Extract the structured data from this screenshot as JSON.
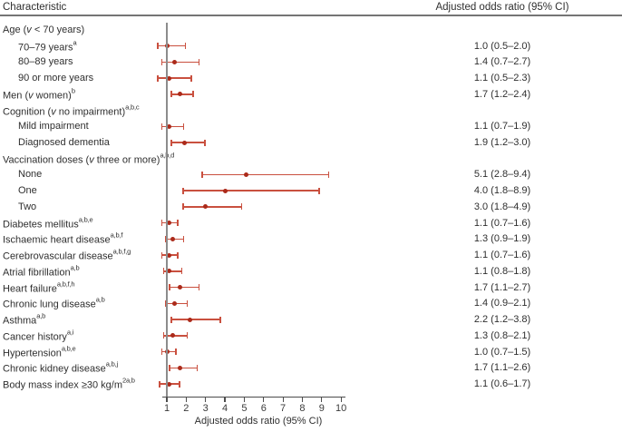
{
  "header": {
    "left": "Characteristic",
    "right": "Adjusted odds ratio (95% CI)"
  },
  "colors": {
    "ci_line": "#c9503f",
    "point": "#ab2a1a",
    "reference_line": "#8c8c8c",
    "header_rule": "#757575",
    "axis": "#4d4d4d",
    "text": "#2f2f2f"
  },
  "chart_data": {
    "type": "scatter",
    "subtype": "forest-plot",
    "title": "",
    "x_axis": {
      "label": "Adjusted odds ratio (95% CI)",
      "ticks": [
        1,
        2,
        3,
        4,
        5,
        6,
        7,
        8,
        9,
        10
      ],
      "min": 1,
      "max": 10,
      "scale": "linear",
      "reference_line_x": 1
    },
    "rows": [
      {
        "label": "Age (v < 70 years)",
        "sup": "",
        "indent": 0,
        "or": null,
        "ci_low": null,
        "ci_high": null,
        "text": ""
      },
      {
        "label": "70–79 years",
        "sup": "a",
        "indent": 1,
        "or": 1.0,
        "ci_low": 0.5,
        "ci_high": 2.0,
        "text": "1.0 (0.5–2.0)"
      },
      {
        "label": "80–89 years",
        "sup": "",
        "indent": 1,
        "or": 1.4,
        "ci_low": 0.7,
        "ci_high": 2.7,
        "text": "1.4 (0.7–2.7)"
      },
      {
        "label": "90 or more years",
        "sup": "",
        "indent": 1,
        "or": 1.1,
        "ci_low": 0.5,
        "ci_high": 2.3,
        "text": "1.1 (0.5–2.3)"
      },
      {
        "label": "Men (v women)",
        "sup": "b",
        "indent": 0,
        "or": 1.7,
        "ci_low": 1.2,
        "ci_high": 2.4,
        "text": "1.7 (1.2–2.4)"
      },
      {
        "label": "Cognition (v no impairment)",
        "sup": "a,b,c",
        "indent": 0,
        "or": null,
        "ci_low": null,
        "ci_high": null,
        "text": ""
      },
      {
        "label": "Mild impairment",
        "sup": "",
        "indent": 1,
        "or": 1.1,
        "ci_low": 0.7,
        "ci_high": 1.9,
        "text": "1.1 (0.7–1.9)"
      },
      {
        "label": "Diagnosed dementia",
        "sup": "",
        "indent": 1,
        "or": 1.9,
        "ci_low": 1.2,
        "ci_high": 3.0,
        "text": "1.9 (1.2–3.0)"
      },
      {
        "label": "Vaccination doses (v three or more)",
        "sup": "a,b,d",
        "indent": 0,
        "or": null,
        "ci_low": null,
        "ci_high": null,
        "text": ""
      },
      {
        "label": "None",
        "sup": "",
        "indent": 1,
        "or": 5.1,
        "ci_low": 2.8,
        "ci_high": 9.4,
        "text": "5.1 (2.8–9.4)"
      },
      {
        "label": "One",
        "sup": "",
        "indent": 1,
        "or": 4.0,
        "ci_low": 1.8,
        "ci_high": 8.9,
        "text": "4.0 (1.8–8.9)"
      },
      {
        "label": "Two",
        "sup": "",
        "indent": 1,
        "or": 3.0,
        "ci_low": 1.8,
        "ci_high": 4.9,
        "text": "3.0 (1.8–4.9)"
      },
      {
        "label": "Diabetes mellitus",
        "sup": "a,b,e",
        "indent": 0,
        "or": 1.1,
        "ci_low": 0.7,
        "ci_high": 1.6,
        "text": "1.1 (0.7–1.6)"
      },
      {
        "label": "Ischaemic heart disease",
        "sup": "a,b,f",
        "indent": 0,
        "or": 1.3,
        "ci_low": 0.9,
        "ci_high": 1.9,
        "text": "1.3 (0.9–1.9)"
      },
      {
        "label": "Cerebrovascular disease",
        "sup": "a,b,f,g",
        "indent": 0,
        "or": 1.1,
        "ci_low": 0.7,
        "ci_high": 1.6,
        "text": "1.1 (0.7–1.6)"
      },
      {
        "label": "Atrial fibrillation",
        "sup": "a,b",
        "indent": 0,
        "or": 1.1,
        "ci_low": 0.8,
        "ci_high": 1.8,
        "text": "1.1 (0.8–1.8)"
      },
      {
        "label": "Heart failure",
        "sup": "a,b,f,h",
        "indent": 0,
        "or": 1.7,
        "ci_low": 1.1,
        "ci_high": 2.7,
        "text": "1.7 (1.1–2.7)"
      },
      {
        "label": "Chronic lung disease",
        "sup": "a,b",
        "indent": 0,
        "or": 1.4,
        "ci_low": 0.9,
        "ci_high": 2.1,
        "text": "1.4 (0.9–2.1)"
      },
      {
        "label": "Asthma",
        "sup": "a,b",
        "indent": 0,
        "or": 2.2,
        "ci_low": 1.2,
        "ci_high": 3.8,
        "text": "2.2 (1.2–3.8)"
      },
      {
        "label": "Cancer history",
        "sup": "a,i",
        "indent": 0,
        "or": 1.3,
        "ci_low": 0.8,
        "ci_high": 2.1,
        "text": "1.3 (0.8–2.1)"
      },
      {
        "label": "Hypertension",
        "sup": "a,b,e",
        "indent": 0,
        "or": 1.0,
        "ci_low": 0.7,
        "ci_high": 1.5,
        "text": "1.0 (0.7–1.5)"
      },
      {
        "label": "Chronic kidney disease",
        "sup": "a,b,j",
        "indent": 0,
        "or": 1.7,
        "ci_low": 1.1,
        "ci_high": 2.6,
        "text": "1.7 (1.1–2.6)"
      },
      {
        "label": "Body mass index ≥30 kg/m",
        "sup": "2a,b",
        "indent": 0,
        "or": 1.1,
        "ci_low": 0.6,
        "ci_high": 1.7,
        "text": "1.1 (0.6–1.7)"
      }
    ]
  }
}
